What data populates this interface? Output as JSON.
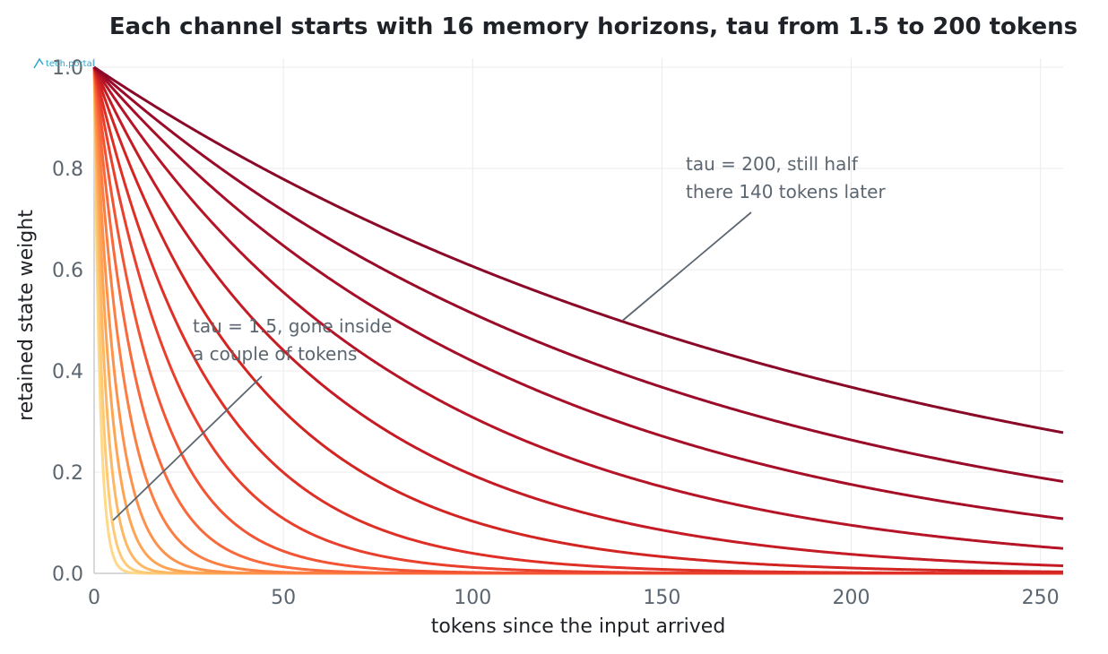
{
  "chart_data": {
    "type": "line",
    "title": "Each channel starts with 16 memory horizons, tau from 1.5 to 200 tokens",
    "xlabel": "tokens since the input arrived",
    "ylabel": "retained state weight",
    "xlim": [
      0,
      256
    ],
    "ylim": [
      0,
      1
    ],
    "x_ticks": [
      0,
      50,
      100,
      150,
      200,
      250
    ],
    "y_ticks": [
      0.0,
      0.2,
      0.4,
      0.6,
      0.8,
      1.0
    ],
    "x_tick_labels": [
      "0",
      "50",
      "100",
      "150",
      "200",
      "250"
    ],
    "y_tick_labels": [
      "0.0",
      "0.2",
      "0.4",
      "0.6",
      "0.8",
      "1.0"
    ],
    "grid": true,
    "legend": "none",
    "function": "exp(-x / tau)",
    "taus": [
      1.5,
      2.1,
      3.0,
      4.2,
      5.8,
      8.2,
      11.5,
      16.0,
      22.5,
      31.0,
      44.0,
      61.0,
      85.0,
      115.0,
      150.0,
      200.0
    ],
    "colors": [
      "#fdd989",
      "#fdca78",
      "#fdb865",
      "#fda555",
      "#fc924b",
      "#fb7e43",
      "#f8693b",
      "#f25434",
      "#e9402d",
      "#df3027",
      "#d22522",
      "#c41b24",
      "#b51527",
      "#a70f28",
      "#990b28",
      "#8a0828"
    ],
    "annotations": [
      {
        "text_lines": [
          "tau = 200, still half",
          "there 140 tokens later"
        ],
        "points_to": [
          139.7,
          0.5
        ]
      },
      {
        "text_lines": [
          "tau = 1.5, gone inside",
          "a couple of tokens"
        ],
        "points_to": [
          5,
          0.105
        ]
      }
    ],
    "watermark": "tech.portal"
  }
}
